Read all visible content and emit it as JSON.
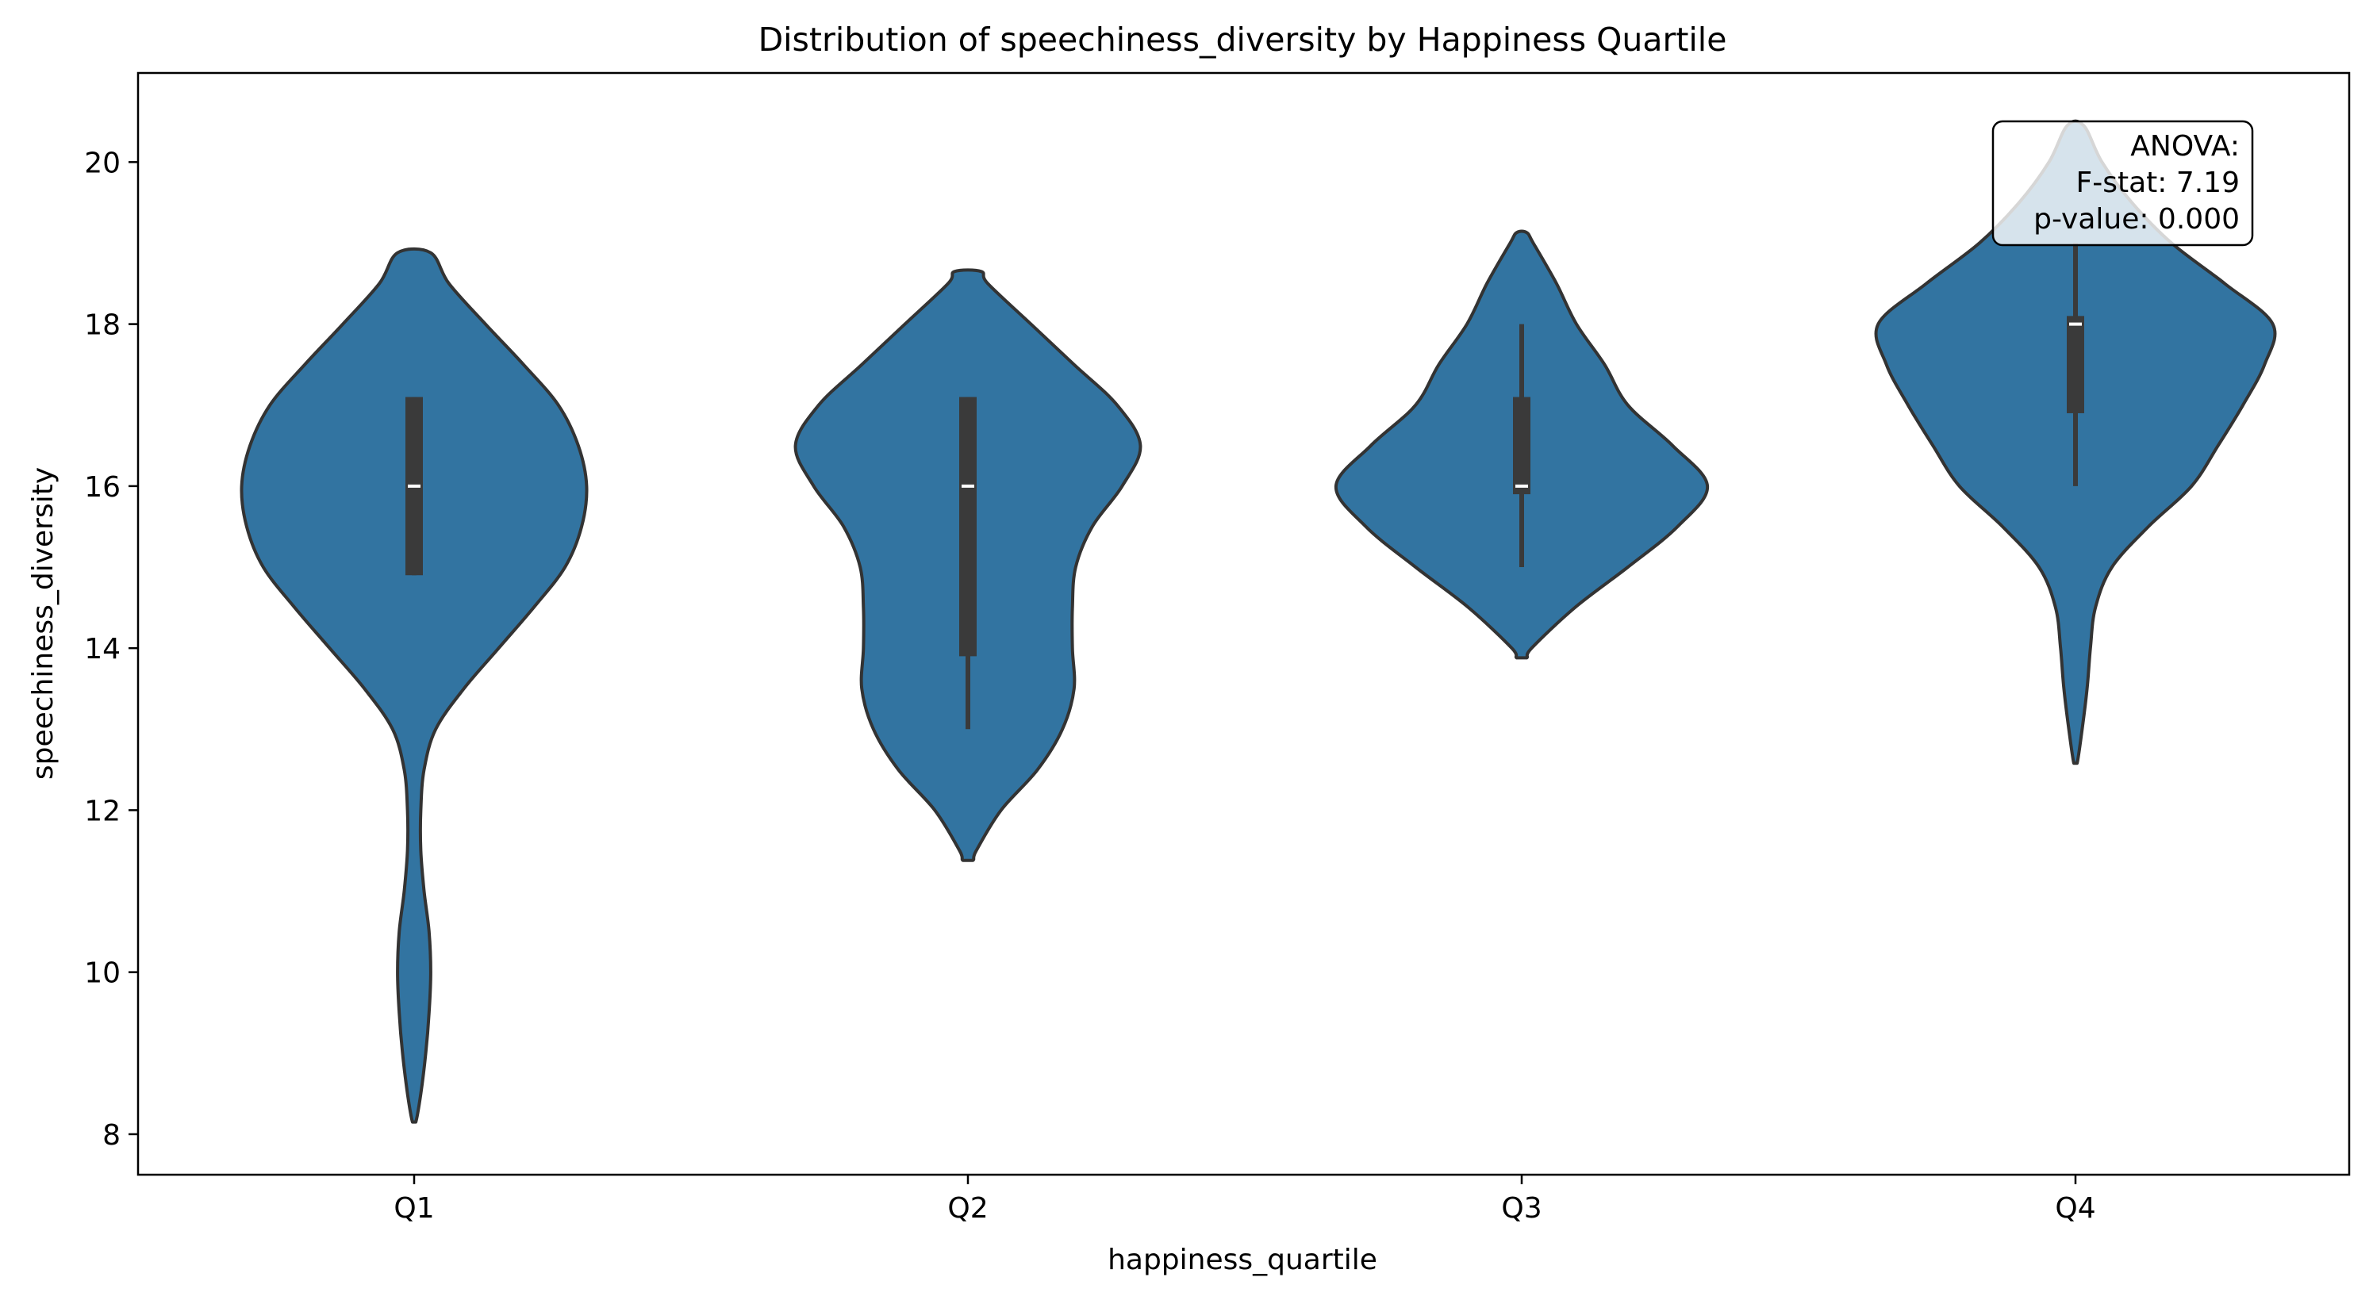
{
  "chart_data": {
    "type": "violin",
    "title": "Distribution of speechiness_diversity by Happiness Quartile",
    "xlabel": "happiness_quartile",
    "ylabel": "speechiness_diversity",
    "categories": [
      "Q1",
      "Q2",
      "Q3",
      "Q4"
    ],
    "ylim": [
      7.5,
      21.1
    ],
    "yticks": [
      8,
      10,
      12,
      14,
      16,
      18,
      20
    ],
    "grid": false,
    "fill_color": "#3274a1",
    "edge_color": "#333333",
    "box_color": "#3a3a3a",
    "median_color": "#ffffff",
    "violins": [
      {
        "category": "Q1",
        "box": {
          "q1": 14.9,
          "median": 16.0,
          "q3": 17.1,
          "whisker_low": 14.9,
          "whisker_high": 17.1
        },
        "density": [
          [
            8.15,
            0.01
          ],
          [
            8.5,
            0.04
          ],
          [
            9,
            0.07
          ],
          [
            9.5,
            0.09
          ],
          [
            10,
            0.1
          ],
          [
            10.5,
            0.09
          ],
          [
            11,
            0.06
          ],
          [
            11.5,
            0.04
          ],
          [
            12,
            0.04
          ],
          [
            12.5,
            0.06
          ],
          [
            13,
            0.13
          ],
          [
            13.5,
            0.3
          ],
          [
            14,
            0.51
          ],
          [
            14.5,
            0.72
          ],
          [
            15,
            0.91
          ],
          [
            15.5,
            1.01
          ],
          [
            16,
            1.04
          ],
          [
            16.5,
            0.99
          ],
          [
            17,
            0.87
          ],
          [
            17.5,
            0.66
          ],
          [
            18,
            0.43
          ],
          [
            18.5,
            0.21
          ],
          [
            18.88,
            0.1
          ]
        ]
      },
      {
        "category": "Q2",
        "box": {
          "q1": 13.9,
          "median": 16.0,
          "q3": 17.1,
          "whisker_low": 13.0,
          "whisker_high": 17.1
        },
        "density": [
          [
            11.38,
            0.03
          ],
          [
            11.5,
            0.05
          ],
          [
            12,
            0.2
          ],
          [
            12.5,
            0.42
          ],
          [
            13,
            0.57
          ],
          [
            13.5,
            0.64
          ],
          [
            14,
            0.63
          ],
          [
            14.5,
            0.63
          ],
          [
            15,
            0.65
          ],
          [
            15.5,
            0.75
          ],
          [
            16,
            0.93
          ],
          [
            16.5,
            1.04
          ],
          [
            17,
            0.9
          ],
          [
            17.5,
            0.64
          ],
          [
            18,
            0.38
          ],
          [
            18.5,
            0.12
          ],
          [
            18.65,
            0.08
          ]
        ]
      },
      {
        "category": "Q3",
        "box": {
          "q1": 15.9,
          "median": 16.0,
          "q3": 17.1,
          "whisker_low": 15.0,
          "whisker_high": 18.0
        },
        "density": [
          [
            13.88,
            0.03
          ],
          [
            14,
            0.06
          ],
          [
            14.5,
            0.32
          ],
          [
            15,
            0.64
          ],
          [
            15.5,
            0.94
          ],
          [
            16,
            1.12
          ],
          [
            16.5,
            0.91
          ],
          [
            17,
            0.64
          ],
          [
            17.5,
            0.5
          ],
          [
            18,
            0.33
          ],
          [
            18.5,
            0.21
          ],
          [
            19,
            0.07
          ],
          [
            19.13,
            0.03
          ]
        ]
      },
      {
        "category": "Q4",
        "box": {
          "q1": 16.9,
          "median": 18.0,
          "q3": 18.1,
          "whisker_low": 16.0,
          "whisker_high": 19.0
        },
        "density": [
          [
            12.58,
            0.01
          ],
          [
            13,
            0.04
          ],
          [
            13.5,
            0.07
          ],
          [
            14,
            0.09
          ],
          [
            14.5,
            0.12
          ],
          [
            15,
            0.22
          ],
          [
            15.5,
            0.44
          ],
          [
            16,
            0.7
          ],
          [
            16.5,
            0.86
          ],
          [
            17,
            1.01
          ],
          [
            17.5,
            1.14
          ],
          [
            18,
            1.19
          ],
          [
            18.5,
            0.9
          ],
          [
            19,
            0.58
          ],
          [
            19.5,
            0.34
          ],
          [
            20,
            0.16
          ],
          [
            20.45,
            0.05
          ]
        ]
      }
    ],
    "annotation": {
      "lines": [
        "ANOVA:",
        "F-stat: 7.19",
        "p-value: 0.000"
      ],
      "position": "top-right"
    }
  }
}
